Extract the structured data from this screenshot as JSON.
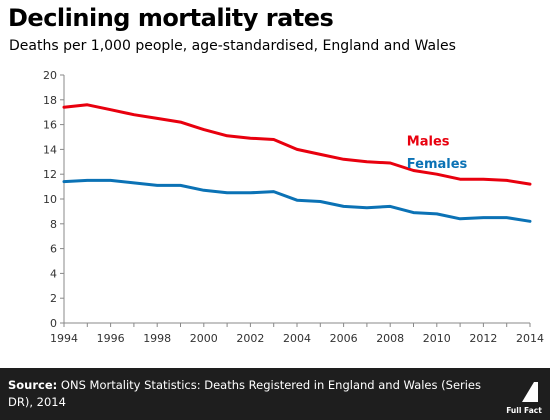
{
  "header": {
    "title": "Declining mortality rates",
    "subtitle": "Deaths per 1,000 people, age-standardised, England and Wales"
  },
  "footer": {
    "source_label": "Source:",
    "source_text": "ONS Mortality Statistics: Deaths Registered in England and Wales (Series DR), 2014",
    "logo_text": "Full Fact"
  },
  "colors": {
    "males": "#e8000e",
    "females": "#0b72b5",
    "axis": "#888888",
    "footer_bg": "#1e1e1e"
  },
  "chart_data": {
    "type": "line",
    "title": "Declining mortality rates",
    "subtitle": "Deaths per 1,000 people, age-standardised, England and Wales",
    "xlabel": "",
    "ylabel": "",
    "x": [
      1994,
      1995,
      1996,
      1997,
      1998,
      1999,
      2000,
      2001,
      2002,
      2003,
      2004,
      2005,
      2006,
      2007,
      2008,
      2009,
      2010,
      2011,
      2012,
      2013,
      2014
    ],
    "xlim": [
      1994,
      2014
    ],
    "ylim": [
      0,
      20
    ],
    "xticks": [
      1994,
      1996,
      1998,
      2000,
      2002,
      2004,
      2006,
      2008,
      2010,
      2012,
      2014
    ],
    "yticks": [
      0,
      2,
      4,
      6,
      8,
      10,
      12,
      14,
      16,
      18,
      20
    ],
    "grid": false,
    "legend": "inline labels, top-right",
    "series": [
      {
        "name": "Males",
        "color": "#e8000e",
        "values": [
          17.4,
          17.6,
          17.2,
          16.8,
          16.5,
          16.2,
          15.6,
          15.1,
          14.9,
          14.8,
          14.0,
          13.6,
          13.2,
          13.0,
          12.9,
          12.3,
          12.0,
          11.6,
          11.6,
          11.5,
          11.2
        ]
      },
      {
        "name": "Females",
        "color": "#0b72b5",
        "values": [
          11.4,
          11.5,
          11.5,
          11.3,
          11.1,
          11.1,
          10.7,
          10.5,
          10.5,
          10.6,
          9.9,
          9.8,
          9.4,
          9.3,
          9.4,
          8.9,
          8.8,
          8.4,
          8.5,
          8.5,
          8.2
        ]
      }
    ]
  }
}
